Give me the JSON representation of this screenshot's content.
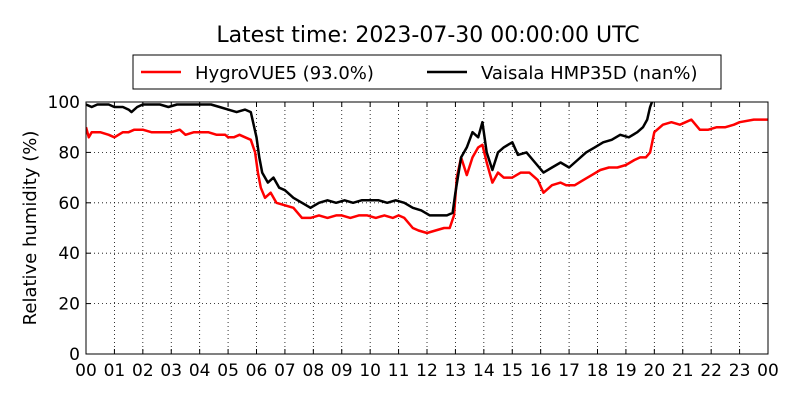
{
  "chart_data": {
    "type": "line",
    "title": "Latest time: 2023-07-30 00:00:00 UTC",
    "xlabel": "",
    "ylabel": "Relative humidity (%)",
    "xlim": [
      0,
      24
    ],
    "ylim": [
      0,
      100
    ],
    "grid": true,
    "legend_position": "top-center",
    "x_tick_labels": [
      "00",
      "01",
      "02",
      "03",
      "04",
      "05",
      "06",
      "07",
      "08",
      "09",
      "10",
      "11",
      "12",
      "13",
      "14",
      "15",
      "16",
      "17",
      "18",
      "19",
      "20",
      "21",
      "22",
      "23",
      "00"
    ],
    "y_tick_labels": [
      "0",
      "20",
      "40",
      "60",
      "80",
      "100"
    ],
    "x_unit": "hour (UTC)",
    "series": [
      {
        "name": "HygroVUE5 (93.0%)",
        "color": "#ff0000",
        "x": [
          0,
          0.1,
          0.2,
          0.3,
          0.5,
          0.8,
          1.0,
          1.3,
          1.5,
          1.7,
          2.0,
          2.3,
          2.6,
          3.0,
          3.3,
          3.5,
          3.8,
          4.0,
          4.3,
          4.6,
          4.9,
          5.0,
          5.2,
          5.4,
          5.6,
          5.8,
          5.95,
          6.05,
          6.15,
          6.3,
          6.5,
          6.7,
          7.0,
          7.3,
          7.6,
          7.9,
          8.2,
          8.5,
          8.8,
          9.0,
          9.3,
          9.6,
          9.9,
          10.2,
          10.5,
          10.8,
          11.0,
          11.2,
          11.5,
          11.7,
          12.0,
          12.3,
          12.6,
          12.8,
          12.95,
          13.05,
          13.2,
          13.4,
          13.6,
          13.8,
          13.95,
          14.1,
          14.3,
          14.5,
          14.7,
          15.0,
          15.3,
          15.6,
          15.9,
          16.1,
          16.4,
          16.7,
          16.9,
          17.2,
          17.5,
          17.8,
          18.1,
          18.4,
          18.7,
          19.0,
          19.3,
          19.5,
          19.7,
          19.85,
          20.0,
          20.3,
          20.6,
          20.9,
          21.1,
          21.3,
          21.6,
          21.9,
          22.2,
          22.5,
          22.8,
          23.0,
          23.5,
          24.0
        ],
        "y": [
          90,
          86,
          88,
          88,
          88,
          87,
          86,
          88,
          88,
          89,
          89,
          88,
          88,
          88,
          89,
          87,
          88,
          88,
          88,
          87,
          87,
          86,
          86,
          87,
          86,
          85,
          80,
          72,
          66,
          62,
          64,
          60,
          59,
          58,
          54,
          54,
          55,
          54,
          55,
          55,
          54,
          55,
          55,
          54,
          55,
          54,
          55,
          54,
          50,
          49,
          48,
          49,
          50,
          50,
          55,
          70,
          78,
          71,
          78,
          82,
          83,
          76,
          68,
          72,
          70,
          70,
          72,
          72,
          69,
          64,
          67,
          68,
          67,
          67,
          69,
          71,
          73,
          74,
          74,
          75,
          77,
          78,
          78,
          80,
          88,
          91,
          92,
          91,
          92,
          93,
          89,
          89,
          90,
          90,
          91,
          92,
          93,
          93
        ]
      },
      {
        "name": "Vaisala HMP35D (nan%)",
        "color": "#000000",
        "x": [
          0,
          0.2,
          0.4,
          0.6,
          0.8,
          1.0,
          1.3,
          1.5,
          1.6,
          1.8,
          2.0,
          2.3,
          2.6,
          2.9,
          3.2,
          3.5,
          3.8,
          4.1,
          4.4,
          4.7,
          5.0,
          5.3,
          5.6,
          5.8,
          6.0,
          6.1,
          6.2,
          6.4,
          6.6,
          6.8,
          7.0,
          7.3,
          7.6,
          7.9,
          8.2,
          8.5,
          8.8,
          9.1,
          9.4,
          9.7,
          10.0,
          10.3,
          10.6,
          10.9,
          11.2,
          11.5,
          11.8,
          12.1,
          12.4,
          12.7,
          12.9,
          13.0,
          13.2,
          13.4,
          13.6,
          13.8,
          13.95,
          14.1,
          14.3,
          14.5,
          14.7,
          15.0,
          15.2,
          15.5,
          15.8,
          16.1,
          16.4,
          16.7,
          17.0,
          17.3,
          17.6,
          17.9,
          18.2,
          18.5,
          18.8,
          19.1,
          19.4,
          19.6,
          19.75,
          19.85,
          19.95
        ],
        "y": [
          99,
          98,
          99,
          99,
          99,
          98,
          98,
          97,
          96,
          98,
          99,
          99,
          99,
          98,
          99,
          99,
          99,
          99,
          99,
          98,
          97,
          96,
          97,
          96,
          86,
          78,
          72,
          68,
          70,
          66,
          65,
          62,
          60,
          58,
          60,
          61,
          60,
          61,
          60,
          61,
          61,
          61,
          60,
          61,
          60,
          58,
          57,
          55,
          55,
          55,
          56,
          64,
          78,
          82,
          88,
          86,
          92,
          80,
          73,
          80,
          82,
          84,
          79,
          80,
          76,
          72,
          74,
          76,
          74,
          77,
          80,
          82,
          84,
          85,
          87,
          86,
          88,
          90,
          93,
          98,
          101
        ]
      }
    ]
  }
}
